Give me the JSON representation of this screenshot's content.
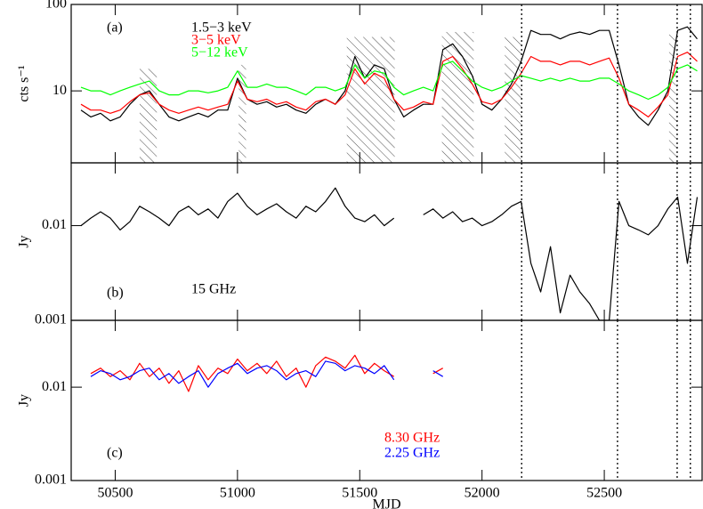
{
  "chart_data": [
    {
      "type": "line",
      "panel_label": "(a)",
      "ylabel": "cts s⁻¹",
      "log_y": true,
      "xlim": [
        50320,
        52900
      ],
      "ylim": [
        1.47,
        100
      ],
      "yticks": [
        10,
        100
      ],
      "x": [
        50360,
        50400,
        50440,
        50480,
        50520,
        50560,
        50600,
        50640,
        50680,
        50720,
        50760,
        50800,
        50840,
        50880,
        50920,
        50960,
        51000,
        51040,
        51080,
        51120,
        51160,
        51200,
        51240,
        51280,
        51320,
        51360,
        51400,
        51440,
        51480,
        51520,
        51560,
        51600,
        51640,
        51680,
        51720,
        51760,
        51800,
        51840,
        51880,
        51920,
        51960,
        52000,
        52040,
        52080,
        52120,
        52160,
        52200,
        52240,
        52280,
        52320,
        52360,
        52400,
        52440,
        52480,
        52520,
        52560,
        52600,
        52640,
        52680,
        52720,
        52760,
        52800,
        52840,
        52880
      ],
      "series": [
        {
          "name": "1.5−3 keV",
          "color": "#000000",
          "values": [
            6,
            5,
            5.5,
            4.5,
            5,
            7,
            9,
            10,
            7,
            5,
            4.5,
            5,
            5.5,
            5,
            6,
            6,
            14,
            8,
            7,
            7.5,
            6.5,
            7,
            6,
            5.5,
            7,
            8,
            7,
            10,
            25,
            14,
            20,
            18,
            8,
            5,
            6,
            7,
            7,
            30,
            35,
            25,
            15,
            7,
            6,
            8,
            12,
            22,
            50,
            45,
            45,
            40,
            45,
            48,
            45,
            50,
            50,
            20,
            7,
            5,
            4,
            6,
            10,
            50,
            55,
            40
          ]
        },
        {
          "name": "3−5 keV",
          "color": "#ff0000",
          "values": [
            7,
            6,
            6,
            5.5,
            6,
            7.5,
            9,
            9.5,
            7,
            6,
            5.5,
            6,
            6.5,
            6,
            6.5,
            7,
            13,
            8,
            7.5,
            8,
            7,
            7.5,
            6.5,
            6,
            7.5,
            8,
            7,
            9,
            18,
            12,
            16,
            14,
            8,
            6,
            6.5,
            7.5,
            7,
            22,
            25,
            18,
            12,
            7.5,
            7,
            8,
            11,
            16,
            25,
            22,
            22,
            20,
            22,
            22,
            20,
            22,
            24,
            14,
            7,
            6,
            5,
            6.5,
            9,
            25,
            28,
            22
          ]
        },
        {
          "name": "5−12 keV",
          "color": "#00ff00",
          "values": [
            11,
            10,
            10,
            9,
            10,
            11,
            12,
            13,
            10,
            9,
            9,
            10,
            10,
            9.5,
            10,
            11,
            17,
            11,
            11,
            12,
            11,
            11,
            10,
            9,
            11,
            11,
            10,
            11,
            20,
            14,
            17,
            16,
            11,
            9,
            10,
            11,
            10,
            20,
            22,
            17,
            13,
            11,
            10,
            11,
            13,
            15,
            14,
            13,
            14,
            13,
            14,
            13,
            13,
            14,
            14,
            12,
            10,
            9,
            8,
            9,
            11,
            18,
            20,
            17
          ]
        }
      ],
      "hatched": [
        {
          "start": 50600,
          "end": 50670,
          "top": 18
        },
        {
          "start": 51005,
          "end": 51035,
          "top": 20
        },
        {
          "start": 51447,
          "end": 51643,
          "top": 42
        },
        {
          "start": 51836,
          "end": 51966,
          "top": 48
        },
        {
          "start": 52093,
          "end": 52160,
          "top": 42
        },
        {
          "start": 52765,
          "end": 52798,
          "top": 45
        }
      ],
      "vlines": [
        52162,
        52554,
        52798,
        52852
      ]
    },
    {
      "type": "line",
      "panel_label": "(b)",
      "annotation": "15 GHz",
      "ylabel": "Jy",
      "log_y": true,
      "xlim": [
        50320,
        52900
      ],
      "ylim": [
        0.001,
        0.046
      ],
      "yticks": [
        0.001,
        0.01
      ],
      "x": [
        50360,
        50400,
        50440,
        50480,
        50520,
        50560,
        50600,
        50640,
        50680,
        50720,
        50760,
        50800,
        50840,
        50880,
        50920,
        50960,
        51000,
        51040,
        51080,
        51120,
        51160,
        51200,
        51240,
        51280,
        51320,
        51360,
        51400,
        51440,
        51480,
        51520,
        51560,
        51600,
        51640,
        51680,
        51720,
        51760,
        51800,
        51840,
        51880,
        51920,
        51960,
        52000,
        52040,
        52080,
        52120,
        52160,
        52200,
        52240,
        52280,
        52320,
        52360,
        52400,
        52440,
        52480,
        52520,
        52560,
        52600,
        52640,
        52680,
        52720,
        52760,
        52800,
        52840,
        52880
      ],
      "series": [
        {
          "color": "#000000",
          "values": [
            0.01,
            0.012,
            0.014,
            0.012,
            0.009,
            0.011,
            0.016,
            0.014,
            0.012,
            0.01,
            0.014,
            0.016,
            0.013,
            0.015,
            0.012,
            0.018,
            0.022,
            0.016,
            0.013,
            0.015,
            0.017,
            0.014,
            0.012,
            0.016,
            0.014,
            0.018,
            0.025,
            0.016,
            0.012,
            0.011,
            0.013,
            0.01,
            0.012,
            null,
            null,
            0.013,
            0.015,
            0.012,
            0.014,
            0.011,
            0.012,
            0.01,
            0.011,
            0.013,
            0.016,
            0.018,
            0.004,
            0.002,
            0.006,
            0.0012,
            0.003,
            0.002,
            0.0015,
            0.001,
            0.001,
            0.018,
            0.01,
            0.009,
            0.008,
            0.01,
            0.015,
            0.02,
            0.004,
            0.02
          ]
        }
      ],
      "vlines": [
        52162,
        52554,
        52798,
        52852
      ]
    },
    {
      "type": "line",
      "panel_label": "(c)",
      "ylabel": "Jy",
      "xlabel": "MJD",
      "log_y": true,
      "xlim": [
        50320,
        52900
      ],
      "ylim": [
        0.001,
        0.052
      ],
      "yticks": [
        0.001,
        0.01
      ],
      "xticks": [
        50500,
        51000,
        51500,
        52000,
        52500
      ],
      "x": [
        50360,
        50400,
        50440,
        50480,
        50520,
        50560,
        50600,
        50640,
        50680,
        50720,
        50760,
        50800,
        50840,
        50880,
        50920,
        50960,
        51000,
        51040,
        51080,
        51120,
        51160,
        51200,
        51240,
        51280,
        51320,
        51360,
        51400,
        51440,
        51480,
        51520,
        51560,
        51600,
        51640,
        51680,
        51720,
        51760,
        51800,
        51840
      ],
      "series": [
        {
          "name": "8.30 GHz",
          "color": "#ff0000",
          "values": [
            null,
            0.014,
            0.016,
            0.013,
            0.015,
            0.012,
            0.018,
            0.013,
            0.016,
            0.011,
            0.015,
            0.009,
            0.017,
            0.012,
            0.016,
            0.014,
            0.02,
            0.015,
            0.018,
            0.014,
            0.019,
            0.013,
            0.016,
            0.01,
            0.017,
            0.021,
            0.019,
            0.016,
            0.022,
            0.014,
            0.018,
            0.015,
            0.013,
            null,
            null,
            null,
            0.014,
            0.016
          ]
        },
        {
          "name": "2.25 GHz",
          "color": "#0000ff",
          "values": [
            null,
            0.013,
            0.015,
            0.014,
            0.012,
            0.013,
            0.015,
            0.016,
            0.012,
            0.014,
            0.011,
            0.013,
            0.015,
            0.01,
            0.014,
            0.016,
            0.018,
            0.014,
            0.016,
            0.017,
            0.015,
            0.012,
            0.014,
            0.015,
            0.013,
            0.019,
            0.018,
            0.015,
            0.017,
            0.016,
            0.014,
            0.017,
            0.012,
            null,
            null,
            null,
            0.015,
            0.013
          ]
        }
      ],
      "vlines": [
        52162,
        52554,
        52798,
        52852
      ]
    }
  ]
}
